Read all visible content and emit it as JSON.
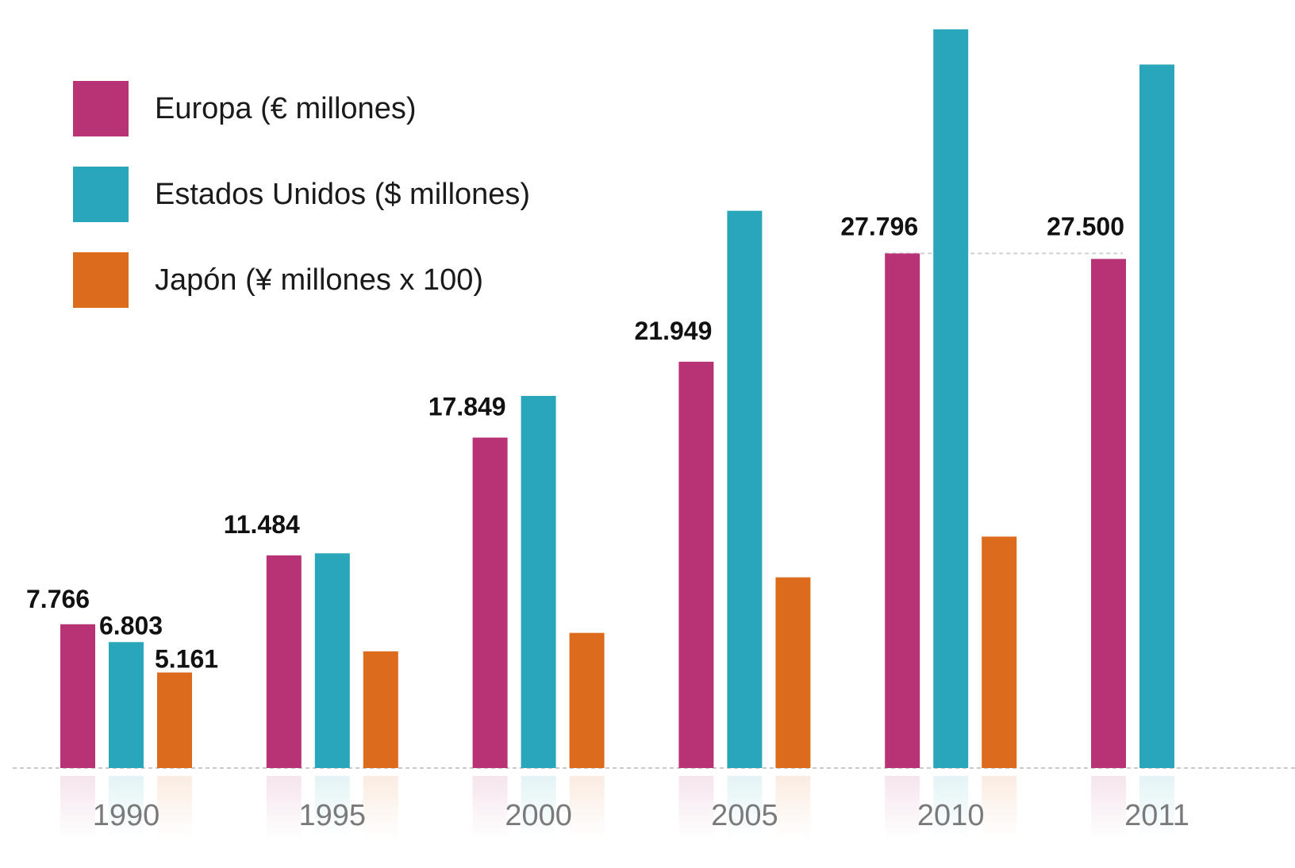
{
  "chart_data": {
    "type": "bar",
    "categories": [
      "1990",
      "1995",
      "2000",
      "2005",
      "2010",
      "2011"
    ],
    "series": [
      {
        "name": "Europa (€ millones)",
        "color": "#b83376",
        "values": [
          7766,
          11484,
          17849,
          21949,
          27796,
          27500
        ]
      },
      {
        "name": "Estados Unidos ($ millones)",
        "color": "#2aa6bb",
        "values": [
          6803,
          11600,
          20100,
          30100,
          39900,
          38000
        ]
      },
      {
        "name": "Japón (¥ millones x 100)",
        "color": "#dc6b1b",
        "values": [
          5161,
          6300,
          7300,
          10300,
          12500,
          null
        ]
      }
    ],
    "data_labels": [
      {
        "category": "1990",
        "series": 0,
        "text": "7.766"
      },
      {
        "category": "1990",
        "series": 1,
        "text": "6.803"
      },
      {
        "category": "1990",
        "series": 2,
        "text": "5.161"
      },
      {
        "category": "1995",
        "series": 0,
        "text": "11.484"
      },
      {
        "category": "2000",
        "series": 0,
        "text": "17.849"
      },
      {
        "category": "2005",
        "series": 0,
        "text": "21.949"
      },
      {
        "category": "2010",
        "series": 0,
        "text": "27.796"
      },
      {
        "category": "2011",
        "series": 0,
        "text": "27.500"
      }
    ],
    "reference_line": {
      "value": 27796
    },
    "ylim": [
      0,
      40000
    ],
    "legend_position": "top-left",
    "grid": false,
    "title": "",
    "xlabel": "",
    "ylabel": ""
  }
}
